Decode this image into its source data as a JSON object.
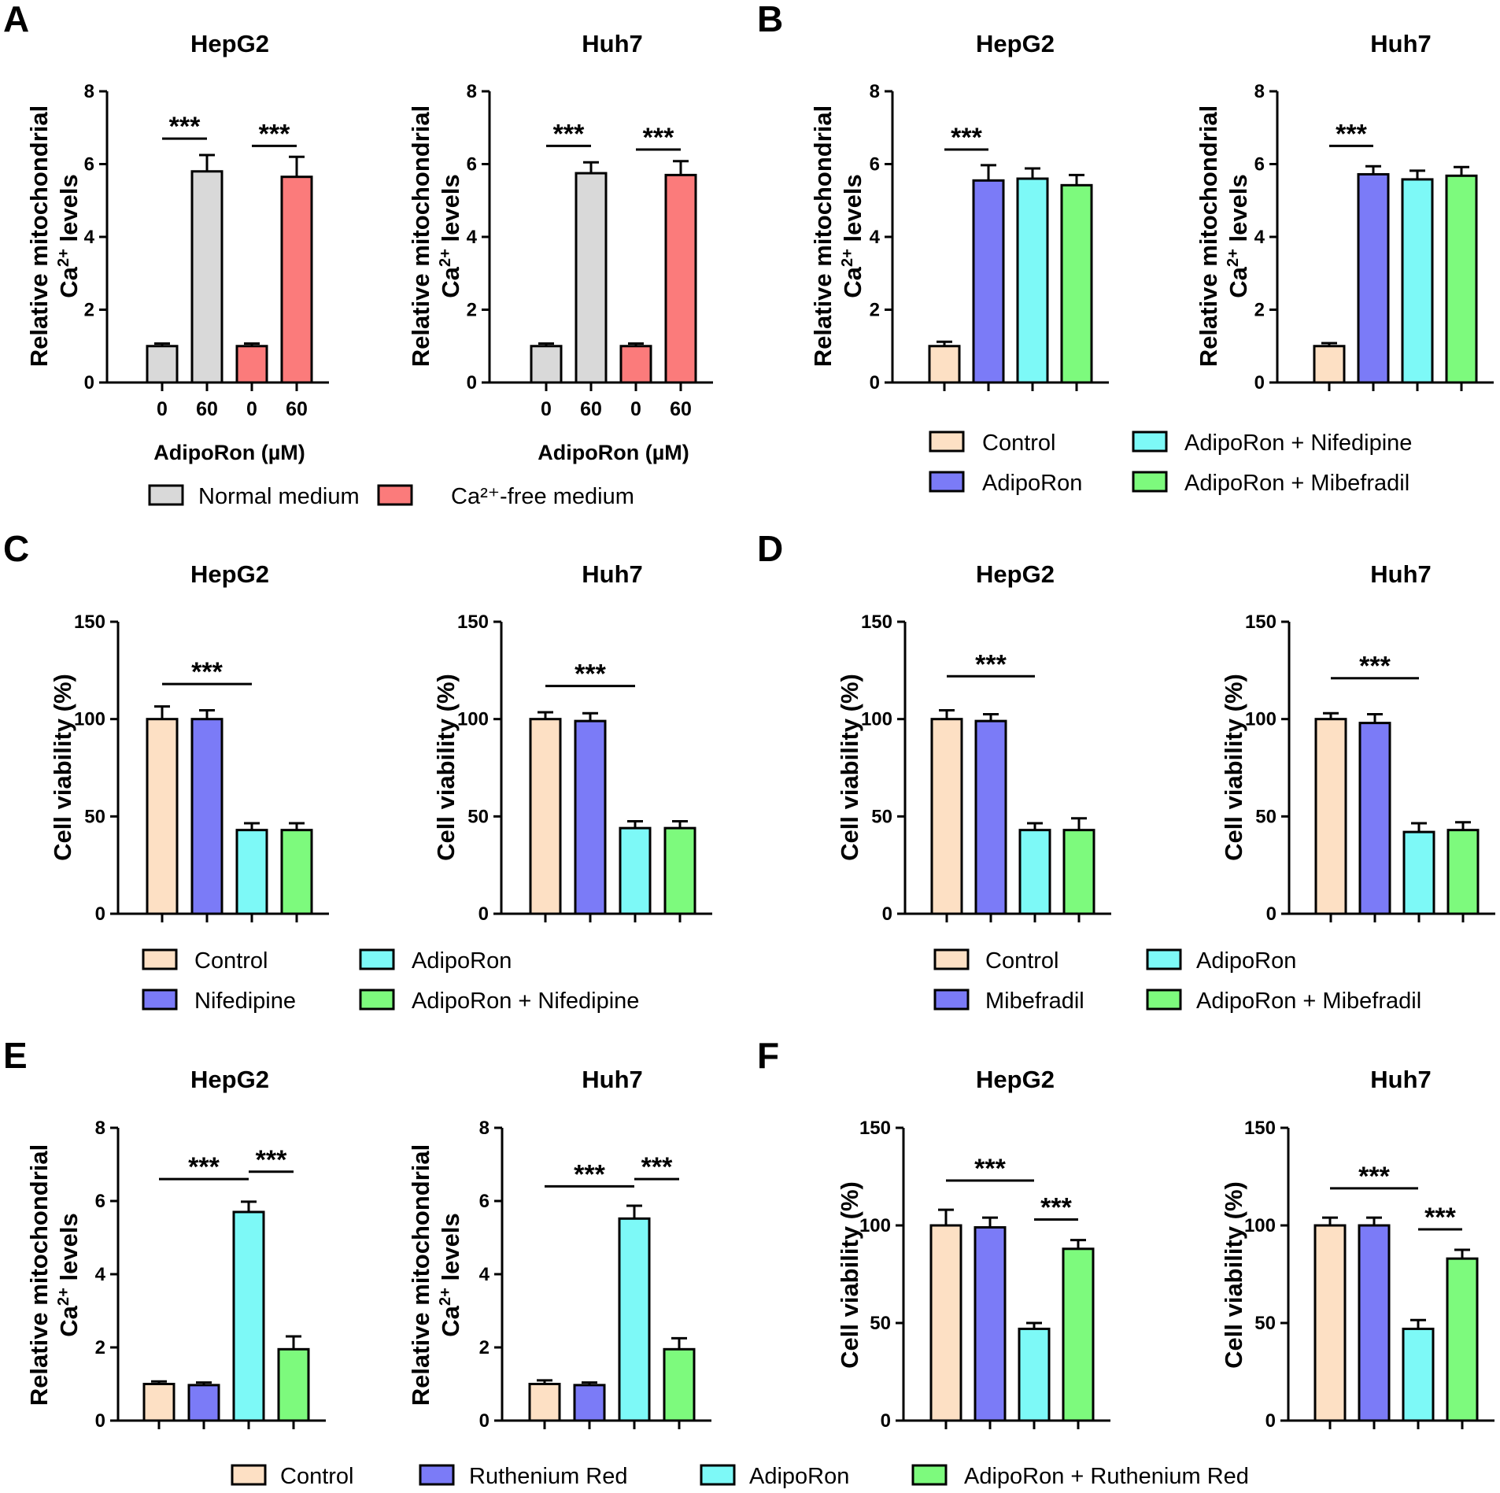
{
  "panels": [
    {
      "letter": "A"
    },
    {
      "letter": "B"
    },
    {
      "letter": "C"
    },
    {
      "letter": "D"
    },
    {
      "letter": "E"
    },
    {
      "letter": "F"
    }
  ],
  "colors": {
    "control": "#fde0c4",
    "blue": "#7b7bf7",
    "cyan": "#7df9f7",
    "green": "#7dfa7d",
    "gray": "#d9d9d9",
    "red": "#fb7b7b",
    "axis": "#000000"
  },
  "legends": [
    {
      "panel": "A",
      "items": [
        {
          "label": "Normal medium",
          "color": "#d9d9d9"
        },
        {
          "label": "Ca²⁺-free medium",
          "color": "#fb7b7b"
        }
      ]
    },
    {
      "panel": "B",
      "items": [
        {
          "label": "Control",
          "color": "#fde0c4"
        },
        {
          "label": "AdipoRon",
          "color": "#7b7bf7"
        },
        {
          "label": "AdipoRon + Nifedipine",
          "color": "#7df9f7"
        },
        {
          "label": "AdipoRon + Mibefradil",
          "color": "#7dfa7d"
        }
      ]
    },
    {
      "panel": "C",
      "items": [
        {
          "label": "Control",
          "color": "#fde0c4"
        },
        {
          "label": "Nifedipine",
          "color": "#7b7bf7"
        },
        {
          "label": "AdipoRon",
          "color": "#7df9f7"
        },
        {
          "label": "AdipoRon + Nifedipine",
          "color": "#7dfa7d"
        }
      ]
    },
    {
      "panel": "D",
      "items": [
        {
          "label": "Control",
          "color": "#fde0c4"
        },
        {
          "label": "Mibefradil",
          "color": "#7b7bf7"
        },
        {
          "label": "AdipoRon",
          "color": "#7df9f7"
        },
        {
          "label": "AdipoRon + Mibefradil",
          "color": "#7dfa7d"
        }
      ]
    },
    {
      "panel": "EF",
      "items": [
        {
          "label": "Control",
          "color": "#fde0c4"
        },
        {
          "label": "Ruthenium Red",
          "color": "#7b7bf7"
        },
        {
          "label": "AdipoRon",
          "color": "#7df9f7"
        },
        {
          "label": "AdipoRon + Ruthenium Red",
          "color": "#7dfa7d"
        }
      ]
    }
  ],
  "chart_data": [
    {
      "panel": "A",
      "type": "bar",
      "title": "HepG2",
      "ylabel": [
        "Relative mitochondrial",
        "Ca²⁺ levels"
      ],
      "ylim": [
        0,
        8
      ],
      "yticks": [
        0,
        2,
        4,
        6,
        8
      ],
      "categories": [
        "0",
        "60",
        "0",
        "60"
      ],
      "xlabel": "AdipoRon (µM)",
      "values": [
        1.0,
        5.8,
        1.0,
        5.65
      ],
      "errors": [
        0.07,
        0.45,
        0.07,
        0.55
      ],
      "colors": [
        "#d9d9d9",
        "#d9d9d9",
        "#fb7b7b",
        "#fb7b7b"
      ],
      "significance": [
        {
          "from": 0,
          "to": 1,
          "y": 6.7,
          "label": "***"
        },
        {
          "from": 2,
          "to": 3,
          "y": 6.5,
          "label": "***"
        }
      ]
    },
    {
      "panel": "A",
      "type": "bar",
      "title": "Huh7",
      "ylabel": [
        "Relative mitochondrial",
        "Ca²⁺ levels"
      ],
      "ylim": [
        0,
        8
      ],
      "yticks": [
        0,
        2,
        4,
        6,
        8
      ],
      "categories": [
        "0",
        "60",
        "0",
        "60"
      ],
      "xlabel": "AdipoRon (µM)",
      "values": [
        1.0,
        5.75,
        1.0,
        5.7
      ],
      "errors": [
        0.07,
        0.3,
        0.07,
        0.38
      ],
      "colors": [
        "#d9d9d9",
        "#d9d9d9",
        "#fb7b7b",
        "#fb7b7b"
      ],
      "significance": [
        {
          "from": 0,
          "to": 1,
          "y": 6.5,
          "label": "***"
        },
        {
          "from": 2,
          "to": 3,
          "y": 6.4,
          "label": "***"
        }
      ]
    },
    {
      "panel": "B",
      "type": "bar",
      "title": "HepG2",
      "ylabel": [
        "Relative mitochondrial",
        "Ca²⁺ levels"
      ],
      "ylim": [
        0,
        8
      ],
      "yticks": [
        0,
        2,
        4,
        6,
        8
      ],
      "categories": [
        "",
        "",
        "",
        ""
      ],
      "values": [
        1.0,
        5.55,
        5.6,
        5.42
      ],
      "errors": [
        0.12,
        0.42,
        0.28,
        0.28
      ],
      "colors": [
        "#fde0c4",
        "#7b7bf7",
        "#7df9f7",
        "#7dfa7d"
      ],
      "significance": [
        {
          "from": 0,
          "to": 1,
          "y": 6.4,
          "label": "***"
        }
      ]
    },
    {
      "panel": "B",
      "type": "bar",
      "title": "Huh7",
      "ylabel": [
        "Relative mitochondrial",
        "Ca²⁺ levels"
      ],
      "ylim": [
        0,
        8
      ],
      "yticks": [
        0,
        2,
        4,
        6,
        8
      ],
      "categories": [
        "",
        "",
        "",
        ""
      ],
      "values": [
        1.0,
        5.72,
        5.58,
        5.68
      ],
      "errors": [
        0.08,
        0.22,
        0.24,
        0.24
      ],
      "colors": [
        "#fde0c4",
        "#7b7bf7",
        "#7df9f7",
        "#7dfa7d"
      ],
      "significance": [
        {
          "from": 0,
          "to": 1,
          "y": 6.5,
          "label": "***"
        }
      ]
    },
    {
      "panel": "C",
      "type": "bar",
      "title": "HepG2",
      "ylabel": [
        "Cell viability (%)"
      ],
      "ylim": [
        0,
        150
      ],
      "yticks": [
        0,
        50,
        100,
        150
      ],
      "categories": [
        "",
        "",
        "",
        ""
      ],
      "values": [
        100,
        100,
        43,
        43
      ],
      "errors": [
        6.5,
        4.5,
        3.5,
        3.5
      ],
      "colors": [
        "#fde0c4",
        "#7b7bf7",
        "#7df9f7",
        "#7dfa7d"
      ],
      "significance": [
        {
          "from": 0,
          "to": 2,
          "y": 118,
          "label": "***"
        }
      ]
    },
    {
      "panel": "C",
      "type": "bar",
      "title": "Huh7",
      "ylabel": [
        "Cell viability (%)"
      ],
      "ylim": [
        0,
        150
      ],
      "yticks": [
        0,
        50,
        100,
        150
      ],
      "categories": [
        "",
        "",
        "",
        ""
      ],
      "values": [
        100,
        99,
        44,
        44
      ],
      "errors": [
        3.5,
        4,
        3.5,
        3.5
      ],
      "colors": [
        "#fde0c4",
        "#7b7bf7",
        "#7df9f7",
        "#7dfa7d"
      ],
      "significance": [
        {
          "from": 0,
          "to": 2,
          "y": 117,
          "label": "***"
        }
      ]
    },
    {
      "panel": "D",
      "type": "bar",
      "title": "HepG2",
      "ylabel": [
        "Cell viability (%)"
      ],
      "ylim": [
        0,
        150
      ],
      "yticks": [
        0,
        50,
        100,
        150
      ],
      "categories": [
        "",
        "",
        "",
        ""
      ],
      "values": [
        100,
        99,
        43,
        43
      ],
      "errors": [
        4.5,
        3.5,
        3.5,
        6
      ],
      "colors": [
        "#fde0c4",
        "#7b7bf7",
        "#7df9f7",
        "#7dfa7d"
      ],
      "significance": [
        {
          "from": 0,
          "to": 2,
          "y": 122,
          "label": "***"
        }
      ]
    },
    {
      "panel": "D",
      "type": "bar",
      "title": "Huh7",
      "ylabel": [
        "Cell viability (%)"
      ],
      "ylim": [
        0,
        150
      ],
      "yticks": [
        0,
        50,
        100,
        150
      ],
      "categories": [
        "",
        "",
        "",
        ""
      ],
      "values": [
        100,
        98,
        42,
        43
      ],
      "errors": [
        3,
        4.5,
        4.5,
        4
      ],
      "colors": [
        "#fde0c4",
        "#7b7bf7",
        "#7df9f7",
        "#7dfa7d"
      ],
      "significance": [
        {
          "from": 0,
          "to": 2,
          "y": 121,
          "label": "***"
        }
      ]
    },
    {
      "panel": "E",
      "type": "bar",
      "title": "HepG2",
      "ylabel": [
        "Relative mitochondrial",
        "Ca²⁺ levels"
      ],
      "ylim": [
        0,
        8
      ],
      "yticks": [
        0,
        2,
        4,
        6,
        8
      ],
      "categories": [
        "",
        "",
        "",
        ""
      ],
      "values": [
        1.0,
        0.97,
        5.7,
        1.95
      ],
      "errors": [
        0.07,
        0.07,
        0.28,
        0.35
      ],
      "colors": [
        "#fde0c4",
        "#7b7bf7",
        "#7df9f7",
        "#7dfa7d"
      ],
      "significance": [
        {
          "from": 0,
          "to": 2,
          "y": 6.6,
          "label": "***"
        },
        {
          "from": 2,
          "to": 3,
          "y": 6.8,
          "label": "***"
        }
      ]
    },
    {
      "panel": "E",
      "type": "bar",
      "title": "Huh7",
      "ylabel": [
        "Relative mitochondrial",
        "Ca²⁺ levels"
      ],
      "ylim": [
        0,
        8
      ],
      "yticks": [
        0,
        2,
        4,
        6,
        8
      ],
      "categories": [
        "",
        "",
        "",
        ""
      ],
      "values": [
        1.0,
        0.97,
        5.52,
        1.95
      ],
      "errors": [
        0.1,
        0.07,
        0.35,
        0.3
      ],
      "colors": [
        "#fde0c4",
        "#7b7bf7",
        "#7df9f7",
        "#7dfa7d"
      ],
      "significance": [
        {
          "from": 0,
          "to": 2,
          "y": 6.4,
          "label": "***"
        },
        {
          "from": 2,
          "to": 3,
          "y": 6.6,
          "label": "***"
        }
      ]
    },
    {
      "panel": "F",
      "type": "bar",
      "title": "HepG2",
      "ylabel": [
        "Cell viability (%)"
      ],
      "ylim": [
        0,
        150
      ],
      "yticks": [
        0,
        50,
        100,
        150
      ],
      "categories": [
        "",
        "",
        "",
        ""
      ],
      "values": [
        100,
        99,
        47,
        88
      ],
      "errors": [
        8,
        5,
        3,
        4.5
      ],
      "colors": [
        "#fde0c4",
        "#7b7bf7",
        "#7df9f7",
        "#7dfa7d"
      ],
      "significance": [
        {
          "from": 0,
          "to": 2,
          "y": 123,
          "label": "***"
        },
        {
          "from": 2,
          "to": 3,
          "y": 103,
          "label": "***"
        }
      ]
    },
    {
      "panel": "F",
      "type": "bar",
      "title": "Huh7",
      "ylabel": [
        "Cell viability (%)"
      ],
      "ylim": [
        0,
        150
      ],
      "yticks": [
        0,
        50,
        100,
        150
      ],
      "categories": [
        "",
        "",
        "",
        ""
      ],
      "values": [
        100,
        100,
        47,
        83
      ],
      "errors": [
        4,
        4,
        4.5,
        4.5
      ],
      "colors": [
        "#fde0c4",
        "#7b7bf7",
        "#7df9f7",
        "#7dfa7d"
      ],
      "significance": [
        {
          "from": 0,
          "to": 2,
          "y": 119,
          "label": "***"
        },
        {
          "from": 2,
          "to": 3,
          "y": 98,
          "label": "***"
        }
      ]
    }
  ]
}
